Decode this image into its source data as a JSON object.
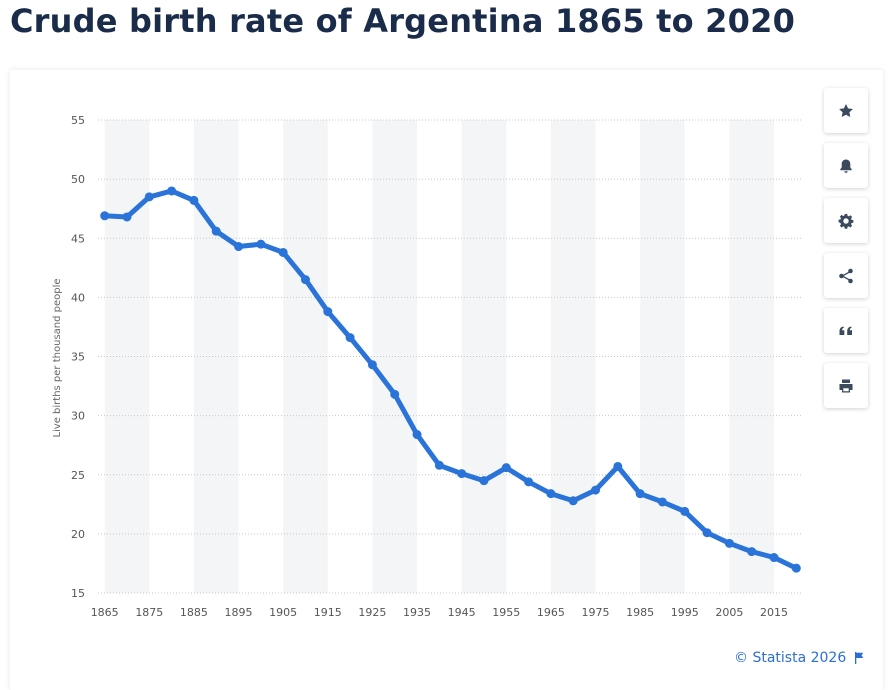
{
  "title": "Crude birth rate of Argentina 1865 to 2020",
  "toolbar": {
    "icons": [
      "star-icon",
      "bell-icon",
      "gear-icon",
      "share-icon",
      "quote-icon",
      "print-icon"
    ]
  },
  "credit": "© Statista 2026",
  "colors": {
    "line": "#2a74d9",
    "band": "#f4f5f7",
    "grid": "#c8c8c8"
  },
  "chart_data": {
    "type": "line",
    "ylabel": "Live births per thousand people",
    "xlabel": "",
    "ylim": [
      15,
      55
    ],
    "yticks": [
      15,
      20,
      25,
      30,
      35,
      40,
      45,
      50,
      55
    ],
    "xticks": [
      1865,
      1875,
      1885,
      1895,
      1905,
      1915,
      1925,
      1935,
      1945,
      1955,
      1965,
      1975,
      1985,
      1995,
      2005,
      2015
    ],
    "grid": true,
    "series": [
      {
        "x": [
          1865,
          1870,
          1875,
          1880,
          1885,
          1890,
          1895,
          1900,
          1905,
          1910,
          1915,
          1920,
          1925,
          1930,
          1935,
          1940,
          1945,
          1950,
          1955,
          1960,
          1965,
          1970,
          1975,
          1980,
          1985,
          1990,
          1995,
          2000,
          2005,
          2010,
          2015,
          2020
        ],
        "values": [
          46.9,
          46.8,
          48.5,
          49.0,
          48.2,
          45.6,
          44.3,
          44.5,
          43.8,
          41.5,
          38.8,
          36.6,
          34.3,
          31.8,
          28.4,
          25.8,
          25.1,
          24.5,
          25.6,
          24.4,
          23.4,
          22.8,
          23.7,
          25.7,
          23.4,
          22.7,
          21.9,
          20.1,
          19.2,
          18.5,
          18.0,
          17.1
        ]
      }
    ]
  }
}
